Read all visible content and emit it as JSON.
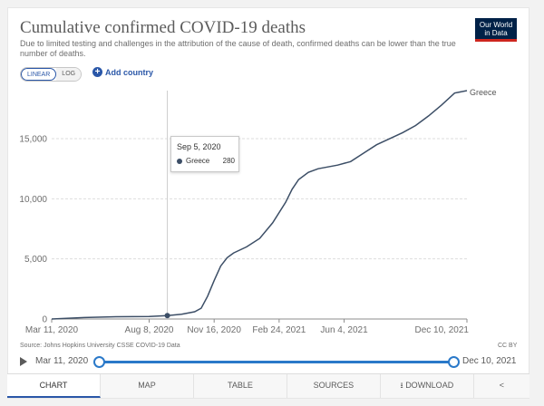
{
  "header": {
    "title": "Cumulative confirmed COVID-19 deaths",
    "subtitle": "Due to limited testing and challenges in the attribution of the cause of death, confirmed deaths can be lower than the true number of deaths.",
    "logo_line1": "Our World",
    "logo_line2": "in Data"
  },
  "controls": {
    "linear_label": "LINEAR",
    "log_label": "LOG",
    "add_country_label": "Add country"
  },
  "tooltip": {
    "date": "Sep 5, 2020",
    "series": "Greece",
    "value": "280"
  },
  "chart_data": {
    "type": "line",
    "title": "Cumulative confirmed COVID-19 deaths",
    "xlabel": "",
    "ylabel": "",
    "x_ticks": [
      "Mar 11, 2020",
      "Aug 8, 2020",
      "Nov 16, 2020",
      "Feb 24, 2021",
      "Jun 4, 2021",
      "Dec 10, 2021"
    ],
    "y_ticks": [
      "0",
      "5,000",
      "10,000",
      "15,000"
    ],
    "ylim": [
      0,
      19000
    ],
    "xlim_days": [
      0,
      639
    ],
    "x_tick_days": [
      0,
      150,
      250,
      350,
      450,
      639
    ],
    "series": [
      {
        "name": "Greece",
        "color": "#3c4e66",
        "points": [
          [
            0,
            0
          ],
          [
            50,
            120
          ],
          [
            100,
            190
          ],
          [
            150,
            210
          ],
          [
            178,
            280
          ],
          [
            200,
            400
          ],
          [
            220,
            600
          ],
          [
            230,
            900
          ],
          [
            240,
            1900
          ],
          [
            250,
            3200
          ],
          [
            260,
            4400
          ],
          [
            270,
            5100
          ],
          [
            280,
            5500
          ],
          [
            300,
            6000
          ],
          [
            320,
            6700
          ],
          [
            340,
            8000
          ],
          [
            360,
            9700
          ],
          [
            370,
            10800
          ],
          [
            380,
            11600
          ],
          [
            395,
            12200
          ],
          [
            410,
            12500
          ],
          [
            440,
            12800
          ],
          [
            460,
            13100
          ],
          [
            480,
            13800
          ],
          [
            500,
            14500
          ],
          [
            520,
            15000
          ],
          [
            540,
            15500
          ],
          [
            560,
            16100
          ],
          [
            580,
            16900
          ],
          [
            600,
            17800
          ],
          [
            620,
            18800
          ],
          [
            639,
            19000
          ]
        ]
      }
    ],
    "highlight": {
      "day": 178,
      "value": 280
    }
  },
  "footer": {
    "source": "Source: Johns Hopkins University CSSE COVID-19 Data",
    "license": "CC BY"
  },
  "timeline": {
    "start": "Mar 11, 2020",
    "end": "Dec 10, 2021"
  },
  "tabs": [
    "CHART",
    "MAP",
    "TABLE",
    "SOURCES",
    "DOWNLOAD",
    "share"
  ],
  "colors": {
    "accent": "#2a57a8",
    "line": "#3c4e66",
    "timeline": "#2a79c9"
  }
}
